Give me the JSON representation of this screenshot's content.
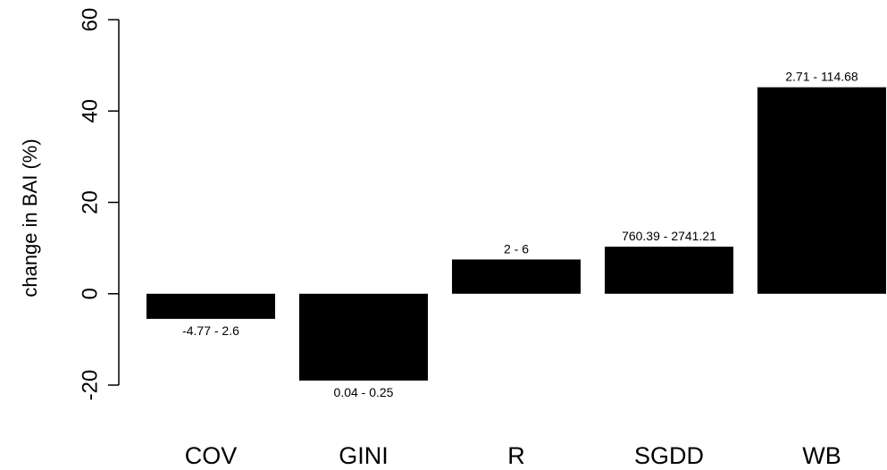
{
  "chart_data": {
    "type": "bar",
    "categories": [
      "COV",
      "GINI",
      "R",
      "SGDD",
      "WB"
    ],
    "values": [
      -5.5,
      -19,
      7.5,
      10.3,
      45.2
    ],
    "data_labels": [
      "-4.77 - 2.6",
      "0.04 - 0.25",
      "2 - 6",
      "760.39 - 2741.21",
      "2.71 - 114.68"
    ],
    "ylabel": "change in BAI (%)",
    "xlabel": "",
    "title": "",
    "ylim": [
      -20,
      60
    ],
    "yticks": [
      -20,
      0,
      20,
      40,
      60
    ],
    "ytick_labels": [
      "-20",
      "0",
      "20",
      "40",
      "60"
    ],
    "bar_color": "#000000",
    "grid": false,
    "legend": "none"
  }
}
